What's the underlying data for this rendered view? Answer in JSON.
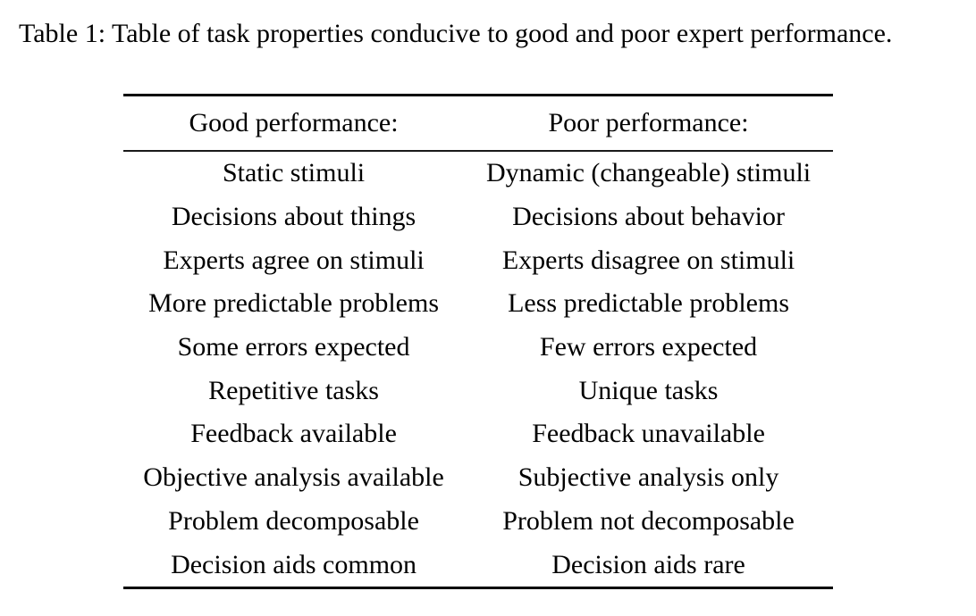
{
  "page": {
    "background_color": "#ffffff",
    "text_color": "#000000",
    "rule_color": "#000000"
  },
  "caption": "Table 1: Table of task properties conducive to good and poor expert performance.",
  "table": {
    "columns": [
      {
        "label": "Good performance:"
      },
      {
        "label": "Poor performance:"
      }
    ],
    "rows": [
      {
        "good": "Static stimuli",
        "poor": "Dynamic (changeable) stimuli"
      },
      {
        "good": "Decisions about things",
        "poor": "Decisions about behavior"
      },
      {
        "good": "Experts agree on stimuli",
        "poor": "Experts disagree on stimuli"
      },
      {
        "good": "More predictable problems",
        "poor": "Less predictable problems"
      },
      {
        "good": "Some errors expected",
        "poor": "Few errors expected"
      },
      {
        "good": "Repetitive tasks",
        "poor": "Unique tasks"
      },
      {
        "good": "Feedback available",
        "poor": "Feedback unavailable"
      },
      {
        "good": "Objective analysis available",
        "poor": "Subjective analysis only"
      },
      {
        "good": "Problem decomposable",
        "poor": "Problem not decomposable"
      },
      {
        "good": "Decision aids common",
        "poor": "Decision aids rare"
      }
    ]
  }
}
